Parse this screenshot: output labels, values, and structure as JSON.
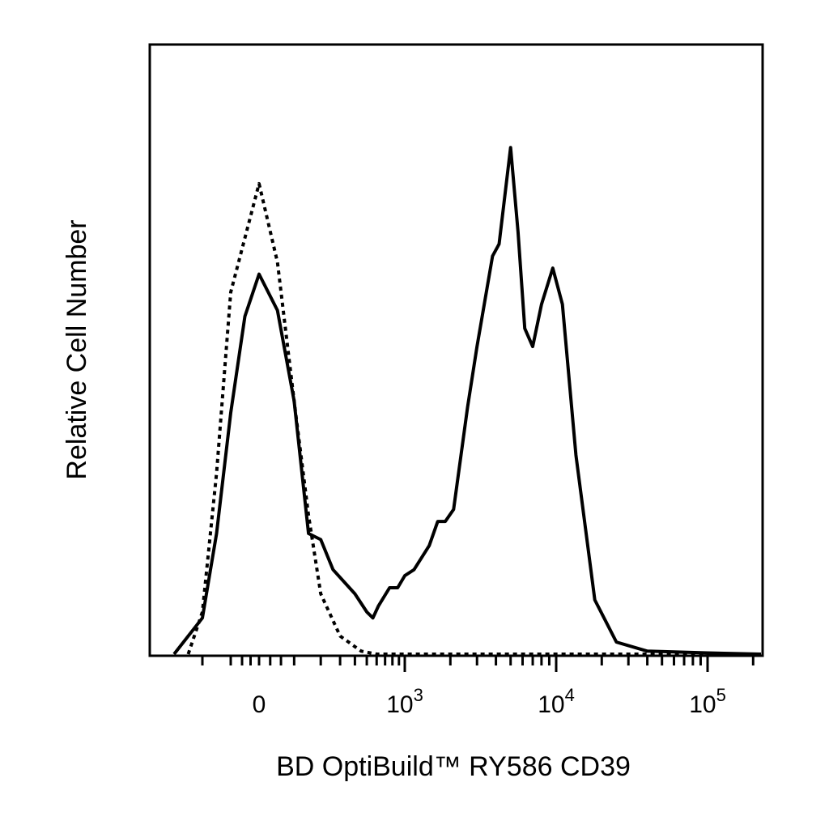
{
  "chart_data": {
    "type": "line",
    "xlabel": "BD OptiBuild™ RY586 CD39",
    "ylabel": "Relative Cell Number",
    "x_scale": "biexponential",
    "x_tick_labels": [
      {
        "value": 0,
        "base": "0",
        "exp": ""
      },
      {
        "value": 1000,
        "base": "10",
        "exp": "3"
      },
      {
        "value": 10000,
        "base": "10",
        "exp": "4"
      },
      {
        "value": 100000,
        "base": "10",
        "exp": "5"
      }
    ],
    "y_tick_labels": [],
    "xlim": [
      -300,
      250000
    ],
    "ylim": [
      0,
      1
    ],
    "grid": false,
    "legend": "none",
    "series": [
      {
        "style": "solid",
        "color": "#000000",
        "points": [
          [
            -300,
            0.0
          ],
          [
            -200,
            0.06
          ],
          [
            -150,
            0.2
          ],
          [
            -100,
            0.4
          ],
          [
            -50,
            0.56
          ],
          [
            0,
            0.63
          ],
          [
            50,
            0.57
          ],
          [
            100,
            0.42
          ],
          [
            150,
            0.2
          ],
          [
            200,
            0.19
          ],
          [
            260,
            0.14
          ],
          [
            400,
            0.1
          ],
          [
            500,
            0.07
          ],
          [
            560,
            0.06
          ],
          [
            620,
            0.08
          ],
          [
            760,
            0.11
          ],
          [
            880,
            0.11
          ],
          [
            1000,
            0.13
          ],
          [
            1150,
            0.14
          ],
          [
            1450,
            0.18
          ],
          [
            1650,
            0.22
          ],
          [
            1850,
            0.22
          ],
          [
            2100,
            0.24
          ],
          [
            2600,
            0.41
          ],
          [
            3000,
            0.51
          ],
          [
            3800,
            0.66
          ],
          [
            4200,
            0.68
          ],
          [
            5000,
            0.84
          ],
          [
            5600,
            0.7
          ],
          [
            6200,
            0.54
          ],
          [
            7000,
            0.51
          ],
          [
            8000,
            0.58
          ],
          [
            9500,
            0.64
          ],
          [
            11000,
            0.58
          ],
          [
            13500,
            0.33
          ],
          [
            18000,
            0.09
          ],
          [
            25000,
            0.02
          ],
          [
            40000,
            0.005
          ],
          [
            100000,
            0.002
          ],
          [
            250000,
            0.0
          ]
        ]
      },
      {
        "style": "dotted",
        "color": "#000000",
        "points": [
          [
            -250,
            0.0
          ],
          [
            -200,
            0.07
          ],
          [
            -150,
            0.3
          ],
          [
            -100,
            0.6
          ],
          [
            -50,
            0.69
          ],
          [
            0,
            0.78
          ],
          [
            50,
            0.65
          ],
          [
            100,
            0.42
          ],
          [
            150,
            0.23
          ],
          [
            200,
            0.1
          ],
          [
            300,
            0.03
          ],
          [
            450,
            0.005
          ],
          [
            600,
            0.0
          ],
          [
            1000,
            0.0
          ],
          [
            250000,
            0.0
          ]
        ]
      }
    ]
  }
}
